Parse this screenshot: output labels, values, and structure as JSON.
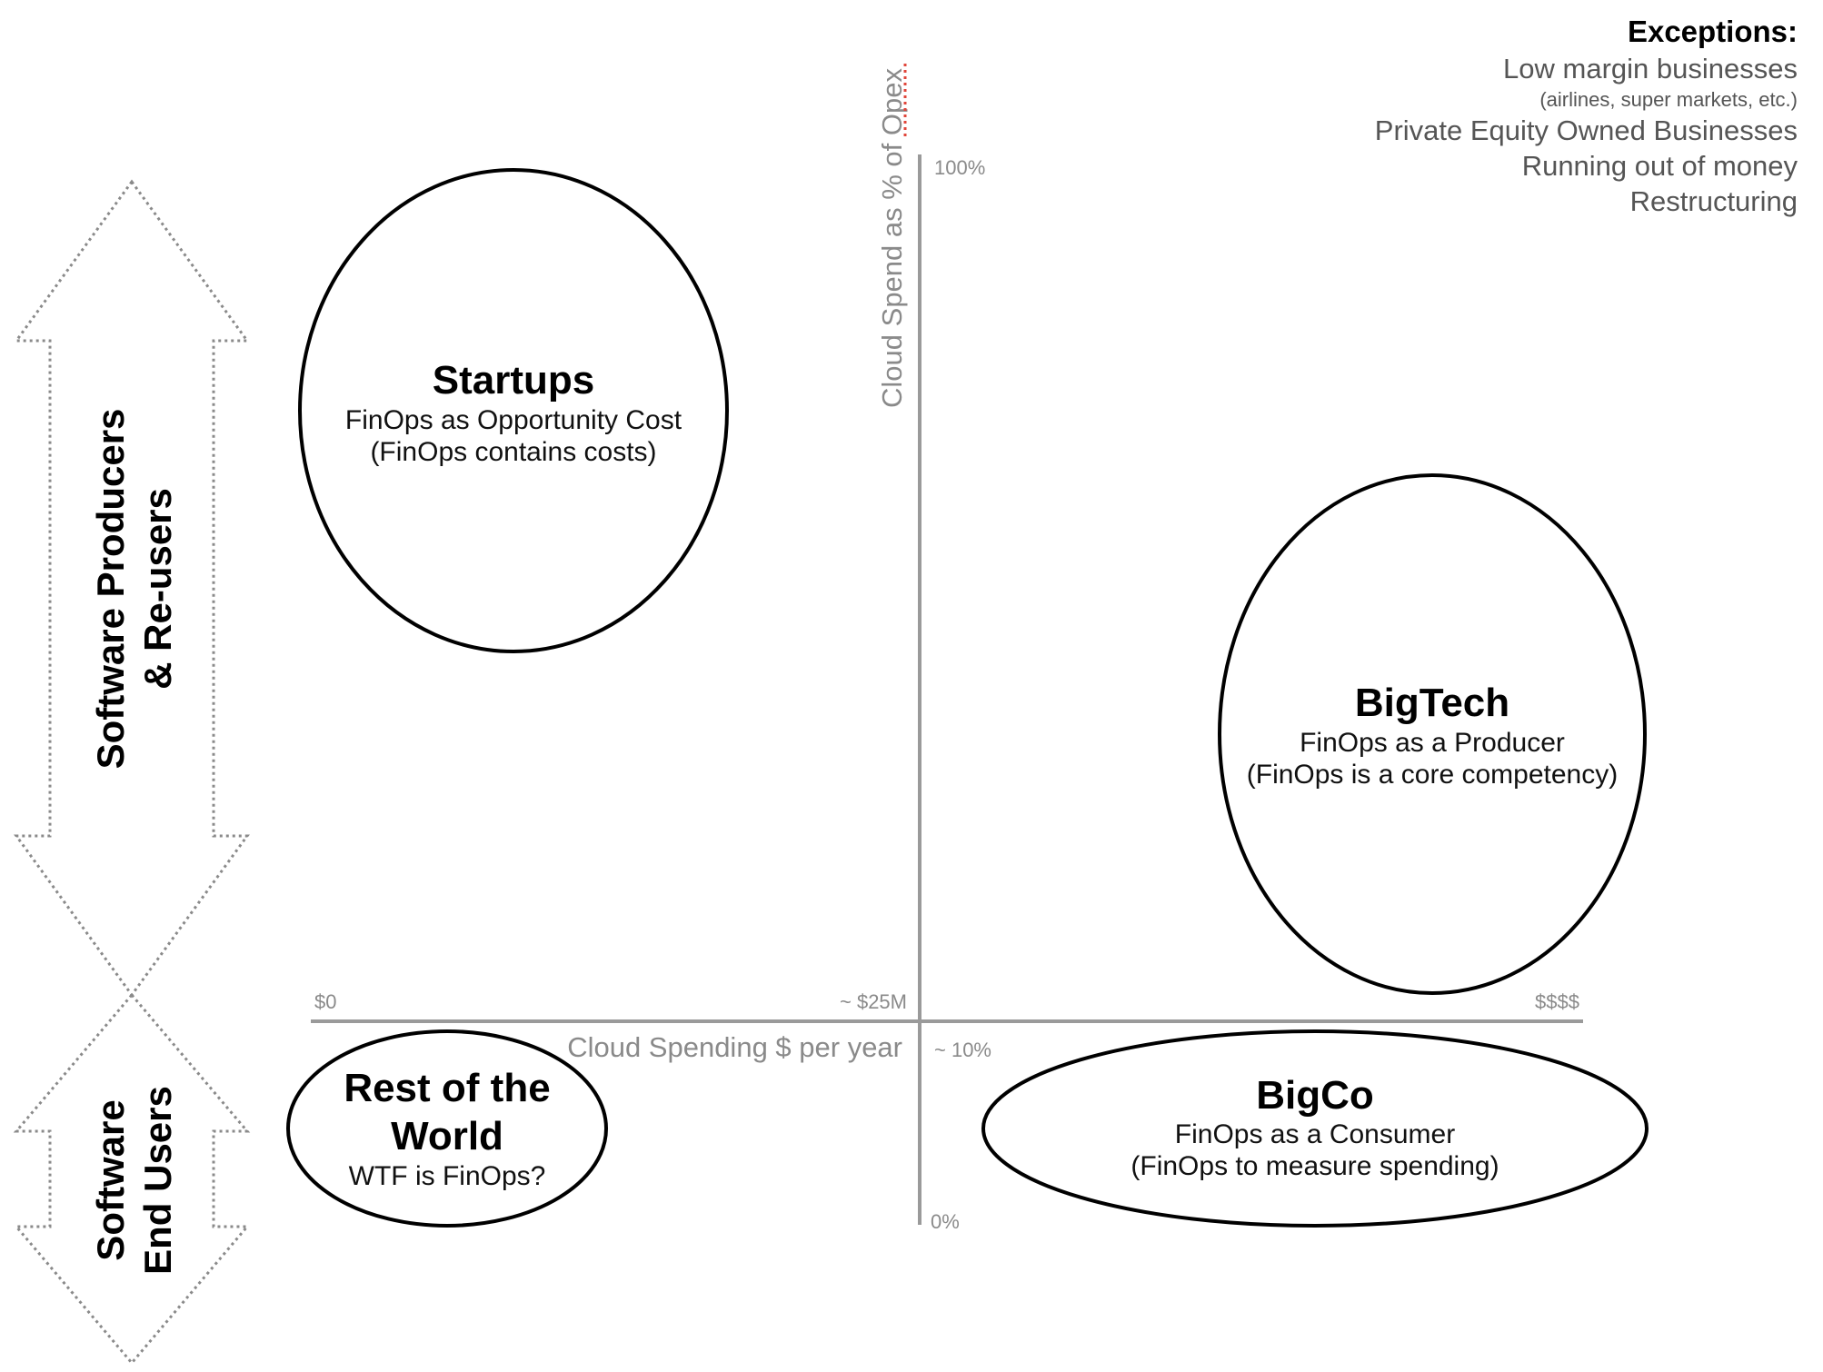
{
  "exceptions": {
    "title": "Exceptions:",
    "items": [
      "Low margin businesses",
      "(airlines, super markets, etc.)",
      "Private Equity Owned Businesses",
      "Running out of money",
      "Restructuring"
    ]
  },
  "axes": {
    "y_title": "Cloud Spend as % of Opex",
    "y_top": "100%",
    "y_mid": "~ 10%",
    "y_bottom": "0%",
    "x_title": "Cloud Spending $ per year",
    "x_left": "$0",
    "x_mid": "~ $25M",
    "x_right": "$$$$"
  },
  "segments": {
    "startups": {
      "title": "Startups",
      "line1": "FinOps as Opportunity Cost",
      "line2": "(FinOps contains costs)"
    },
    "bigtech": {
      "title": "BigTech",
      "line1": "FinOps as a Producer",
      "line2": "(FinOps is a core competency)"
    },
    "rest": {
      "title_line1": "Rest of the",
      "title_line2": "World",
      "line1": "WTF is FinOps?"
    },
    "bigco": {
      "title": "BigCo",
      "line1": "FinOps as a Consumer",
      "line2": "(FinOps to measure spending)"
    }
  },
  "bands": {
    "producers_line1": "Software Producers",
    "producers_line2": "& Re-users",
    "endusers_line1": "Software",
    "endusers_line2": "End Users"
  }
}
